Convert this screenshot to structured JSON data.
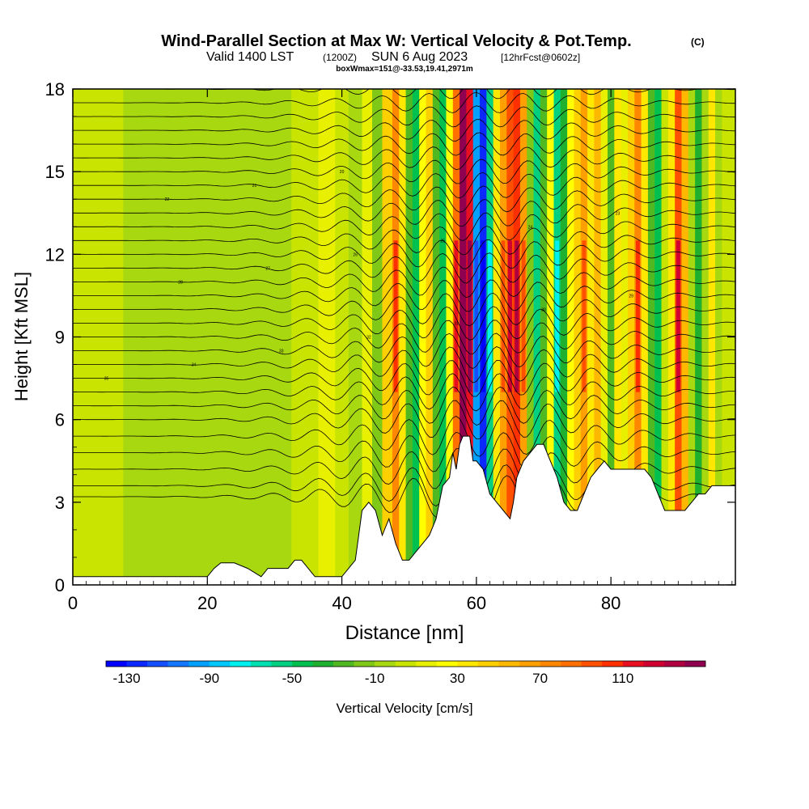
{
  "title": {
    "main": "Wind-Parallel Section at Max W: Vertical Velocity & Pot.Temp.",
    "copyright": "(C)",
    "valid_a": "Valid 1400 LST",
    "valid_b": "(1200Z)",
    "valid_c": "SUN 6 Aug 2023",
    "valid_d": "[12hrFcst@0602z]",
    "box": "boxWmax=151@-33.53,19.41,2971m"
  },
  "chart_data": {
    "type": "heatmap",
    "xlabel": "Distance [nm]",
    "ylabel": "Height [Kft MSL]",
    "xlim": [
      0,
      98.5
    ],
    "ylim": [
      0,
      18
    ],
    "x_ticks": [
      0,
      20,
      40,
      60,
      80
    ],
    "y_ticks": [
      0,
      3,
      6,
      9,
      12,
      15,
      18
    ],
    "colorbar": {
      "label": "Vertical Velocity [cm/s]",
      "min": -140,
      "max": 150,
      "step": 10,
      "tick_labels": [
        "-130",
        "-90",
        "-50",
        "-10",
        "30",
        "70",
        "110"
      ],
      "tick_values": [
        -130,
        -90,
        -50,
        -10,
        30,
        70,
        110
      ],
      "colors": [
        "#0000ff",
        "#0a28ff",
        "#1450ff",
        "#1478ff",
        "#00a0ff",
        "#00c8ff",
        "#00f0f0",
        "#00e0b0",
        "#00d080",
        "#00c050",
        "#20b030",
        "#50b820",
        "#80c818",
        "#a8d810",
        "#c8e400",
        "#e8f000",
        "#ffff00",
        "#ffe800",
        "#ffd000",
        "#ffb800",
        "#ffa000",
        "#ff8800",
        "#ff7000",
        "#ff5000",
        "#ff3000",
        "#e81020",
        "#d00030",
        "#b00040",
        "#900050"
      ]
    },
    "terrain_kft": [
      [
        0,
        0.3
      ],
      [
        2,
        0.3
      ],
      [
        4,
        0.3
      ],
      [
        6,
        0.3
      ],
      [
        8,
        0.3
      ],
      [
        10,
        0.3
      ],
      [
        12,
        0.3
      ],
      [
        14,
        0.3
      ],
      [
        16,
        0.3
      ],
      [
        18,
        0.3
      ],
      [
        20,
        0.3
      ],
      [
        21,
        0.6
      ],
      [
        22,
        0.8
      ],
      [
        24,
        0.8
      ],
      [
        26,
        0.6
      ],
      [
        28,
        0.3
      ],
      [
        29,
        0.6
      ],
      [
        30,
        0.6
      ],
      [
        32,
        0.6
      ],
      [
        33,
        0.9
      ],
      [
        34,
        0.9
      ],
      [
        35,
        0.6
      ],
      [
        36,
        0.3
      ],
      [
        38,
        0.3
      ],
      [
        40,
        0.3
      ],
      [
        41,
        0.6
      ],
      [
        42,
        0.9
      ],
      [
        42.5,
        1.8
      ],
      [
        43,
        2.7
      ],
      [
        44,
        3.0
      ],
      [
        45,
        2.7
      ],
      [
        46,
        1.8
      ],
      [
        46.5,
        2.1
      ],
      [
        47,
        2.4
      ],
      [
        48,
        1.5
      ],
      [
        49,
        0.9
      ],
      [
        50,
        0.9
      ],
      [
        51,
        1.2
      ],
      [
        52,
        1.5
      ],
      [
        53,
        1.8
      ],
      [
        54,
        2.4
      ],
      [
        55,
        3.6
      ],
      [
        56,
        3.9
      ],
      [
        56.5,
        4.8
      ],
      [
        57,
        4.2
      ],
      [
        57.5,
        5.1
      ],
      [
        58,
        5.4
      ],
      [
        59,
        5.4
      ],
      [
        59.5,
        4.5
      ],
      [
        60,
        4.5
      ],
      [
        61,
        4.2
      ],
      [
        62,
        3.3
      ],
      [
        63,
        3.0
      ],
      [
        64,
        2.7
      ],
      [
        65,
        2.4
      ],
      [
        65.5,
        3.0
      ],
      [
        66,
        3.9
      ],
      [
        67,
        4.5
      ],
      [
        68,
        4.8
      ],
      [
        69,
        5.1
      ],
      [
        70,
        5.1
      ],
      [
        71,
        4.5
      ],
      [
        72,
        3.9
      ],
      [
        73,
        3.0
      ],
      [
        74,
        2.7
      ],
      [
        75,
        2.7
      ],
      [
        76,
        3.3
      ],
      [
        77,
        3.9
      ],
      [
        78,
        4.2
      ],
      [
        79,
        4.5
      ],
      [
        80,
        4.2
      ],
      [
        82,
        4.2
      ],
      [
        84,
        4.2
      ],
      [
        85,
        4.2
      ],
      [
        86,
        3.9
      ],
      [
        87,
        3.3
      ],
      [
        88,
        2.7
      ],
      [
        90,
        2.7
      ],
      [
        91,
        2.7
      ],
      [
        92,
        3.0
      ],
      [
        93,
        3.3
      ],
      [
        94,
        3.3
      ],
      [
        95,
        3.6
      ],
      [
        96,
        3.6
      ],
      [
        98.5,
        3.6
      ]
    ],
    "series": [
      {
        "name": "vertical_velocity_bands",
        "columns": [
          {
            "x": 5,
            "w": 0
          },
          {
            "x": 10,
            "w": -2
          },
          {
            "x": 15,
            "w": -6
          },
          {
            "x": 20,
            "w": -2
          },
          {
            "x": 25,
            "w": -8
          },
          {
            "x": 30,
            "w": -4
          },
          {
            "x": 35,
            "w": 4
          },
          {
            "x": 38,
            "w": 12
          },
          {
            "x": 40,
            "w": 6
          },
          {
            "x": 42,
            "w": -10
          },
          {
            "x": 44,
            "w": 14
          },
          {
            "x": 45,
            "w": -20
          },
          {
            "x": 47,
            "w": 40
          },
          {
            "x": 48,
            "w": 70
          },
          {
            "x": 49,
            "w": 30
          },
          {
            "x": 50,
            "w": -25
          },
          {
            "x": 51,
            "w": -50
          },
          {
            "x": 52,
            "w": 20
          },
          {
            "x": 53,
            "w": 40
          },
          {
            "x": 54,
            "w": -30
          },
          {
            "x": 55,
            "w": -45
          },
          {
            "x": 56,
            "w": 20
          },
          {
            "x": 57,
            "w": 80
          },
          {
            "x": 58,
            "w": 140
          },
          {
            "x": 59,
            "w": 110
          },
          {
            "x": 60,
            "w": -100
          },
          {
            "x": 61,
            "w": -130
          },
          {
            "x": 62,
            "w": -60
          },
          {
            "x": 63,
            "w": 30
          },
          {
            "x": 64,
            "w": 60
          },
          {
            "x": 65,
            "w": 90
          },
          {
            "x": 66,
            "w": 100
          },
          {
            "x": 67,
            "w": 60
          },
          {
            "x": 68,
            "w": -20
          },
          {
            "x": 69,
            "w": -55
          },
          {
            "x": 70,
            "w": -30
          },
          {
            "x": 71,
            "w": 20
          },
          {
            "x": 72,
            "w": -60
          },
          {
            "x": 73,
            "w": -35
          },
          {
            "x": 74,
            "w": 25
          },
          {
            "x": 75,
            "w": 45
          },
          {
            "x": 76,
            "w": 60
          },
          {
            "x": 77,
            "w": 30
          },
          {
            "x": 78,
            "w": 50
          },
          {
            "x": 79,
            "w": 10
          },
          {
            "x": 80,
            "w": -25
          },
          {
            "x": 81,
            "w": 35
          },
          {
            "x": 82,
            "w": 10
          },
          {
            "x": 83,
            "w": 40
          },
          {
            "x": 84,
            "w": 70
          },
          {
            "x": 85,
            "w": 30
          },
          {
            "x": 86,
            "w": -30
          },
          {
            "x": 87,
            "w": -50
          },
          {
            "x": 88,
            "w": 0
          },
          {
            "x": 89,
            "w": 30
          },
          {
            "x": 90,
            "w": 90
          },
          {
            "x": 91,
            "w": 50
          },
          {
            "x": 92,
            "w": -10
          },
          {
            "x": 93,
            "w": -40
          },
          {
            "x": 94,
            "w": -10
          },
          {
            "x": 95,
            "w": 30
          },
          {
            "x": 96,
            "w": -10
          },
          {
            "x": 97,
            "w": 5
          },
          {
            "x": 98.5,
            "w": 0
          }
        ]
      },
      {
        "name": "potential_temperature_isentropes",
        "base_heights_kft": [
          3.2,
          3.6,
          4.2,
          4.8,
          5.4,
          6.0,
          6.5,
          7.0,
          7.5,
          8.0,
          8.5,
          9.0,
          9.5,
          10.0,
          10.5,
          11.0,
          11.5,
          12.0,
          12.5,
          13.0,
          13.5,
          14.0,
          14.5,
          15.0,
          15.5,
          16.0,
          16.5,
          17.0,
          17.5,
          18.0
        ],
        "wave_amplitude_kft": 0.9,
        "wave_center_x": 60,
        "label_values": [
          "35",
          "34",
          "33",
          "32",
          "31",
          "30",
          "29",
          "28",
          "27",
          "26",
          "25",
          "24",
          "23",
          "22",
          "21",
          "20"
        ]
      }
    ]
  }
}
